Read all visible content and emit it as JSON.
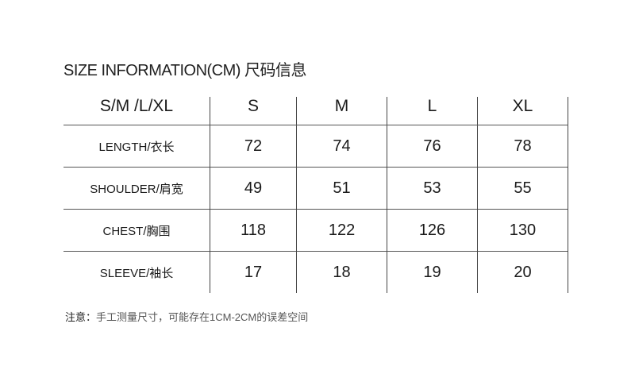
{
  "title": "SIZE INFORMATION(CM) 尺码信息",
  "table": {
    "header": [
      "S/M /L/XL",
      "S",
      "M",
      "L",
      "XL"
    ],
    "rows": [
      {
        "label": "LENGTH/衣长",
        "values": [
          "72",
          "74",
          "76",
          "78"
        ]
      },
      {
        "label": "SHOULDER/肩宽",
        "values": [
          "49",
          "51",
          "53",
          "55"
        ]
      },
      {
        "label": "CHEST/胸围",
        "values": [
          "118",
          "122",
          "126",
          "130"
        ]
      },
      {
        "label": "SLEEVE/袖长",
        "values": [
          "17",
          "18",
          "19",
          "20"
        ]
      }
    ]
  },
  "note": {
    "prefix": "注意：",
    "text": "手工测量尺寸，可能存在1CM-2CM的误差空间"
  }
}
